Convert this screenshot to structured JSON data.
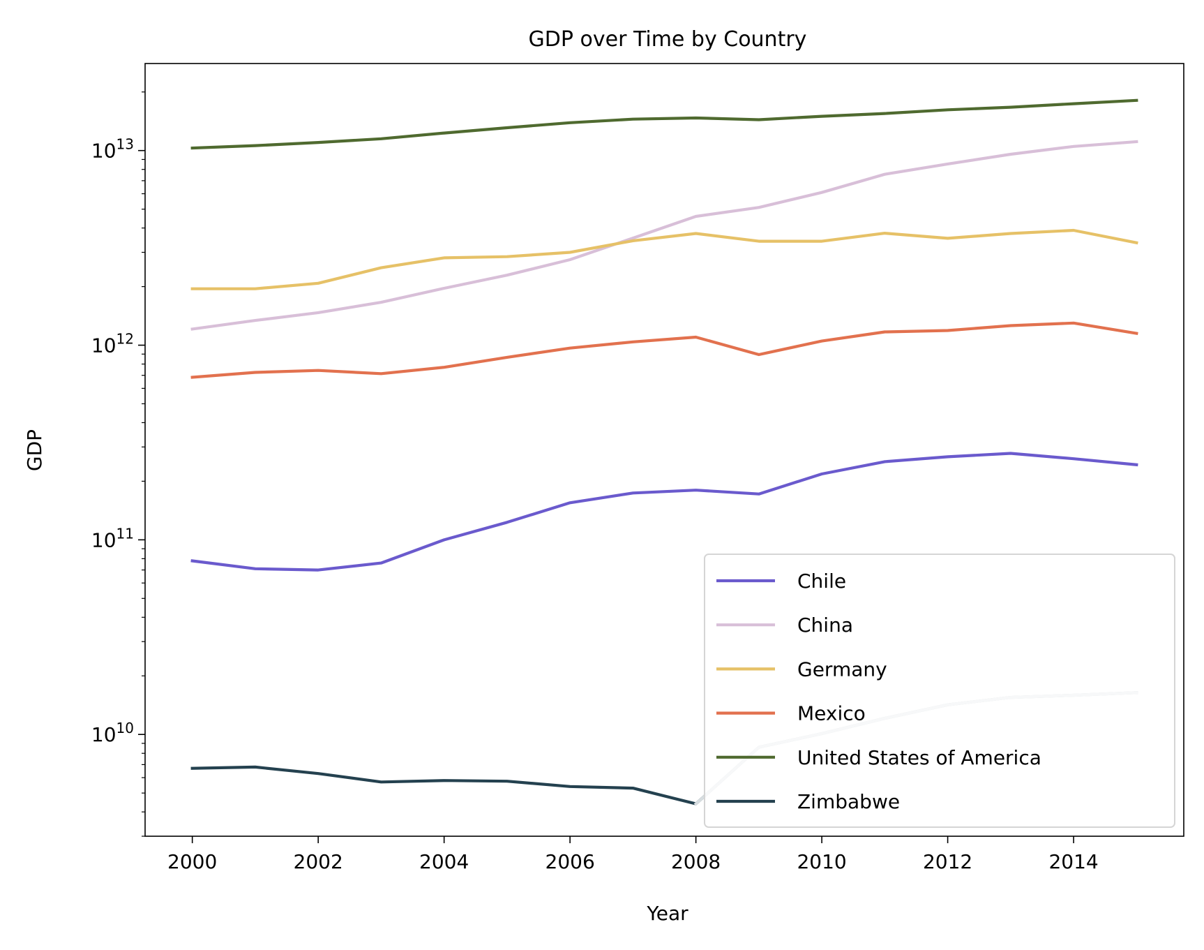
{
  "chart_data": {
    "type": "line",
    "title": "GDP over Time by Country",
    "xlabel": "Year",
    "ylabel": "GDP",
    "xlim": [
      1999.25,
      2015.75
    ],
    "ylim": [
      3000000000.0,
      28000000000000.0
    ],
    "yscale": "log",
    "x_ticks": [
      2000,
      2002,
      2004,
      2006,
      2008,
      2010,
      2012,
      2014
    ],
    "y_ticks": [
      {
        "value": 10000000000.0,
        "base": "10",
        "exp": "10"
      },
      {
        "value": 100000000000.0,
        "base": "10",
        "exp": "11"
      },
      {
        "value": 1000000000000.0,
        "base": "10",
        "exp": "12"
      },
      {
        "value": 10000000000000.0,
        "base": "10",
        "exp": "13"
      }
    ],
    "grid": false,
    "legend_position": "lower-right",
    "x": [
      2000,
      2001,
      2002,
      2003,
      2004,
      2005,
      2006,
      2007,
      2008,
      2009,
      2010,
      2011,
      2012,
      2013,
      2014,
      2015
    ],
    "series": [
      {
        "name": "Chile",
        "color": "#6a5acd",
        "values": [
          78000000000.0,
          71000000000.0,
          70000000000.0,
          76000000000.0,
          100000000000.0,
          123000000000.0,
          155000000000.0,
          174000000000.0,
          180000000000.0,
          172000000000.0,
          218000000000.0,
          252000000000.0,
          267000000000.0,
          278000000000.0,
          261000000000.0,
          243000000000.0
        ]
      },
      {
        "name": "China",
        "color": "#d8bfd8",
        "values": [
          1210000000000.0,
          1340000000000.0,
          1470000000000.0,
          1660000000000.0,
          1960000000000.0,
          2290000000000.0,
          2750000000000.0,
          3550000000000.0,
          4590000000000.0,
          5100000000000.0,
          6090000000000.0,
          7550000000000.0,
          8530000000000.0,
          9570000000000.0,
          10500000000000.0,
          11100000000000.0
        ]
      },
      {
        "name": "Germany",
        "color": "#e6c167",
        "values": [
          1950000000000.0,
          1950000000000.0,
          2080000000000.0,
          2500000000000.0,
          2810000000000.0,
          2850000000000.0,
          3000000000000.0,
          3440000000000.0,
          3750000000000.0,
          3420000000000.0,
          3420000000000.0,
          3760000000000.0,
          3540000000000.0,
          3750000000000.0,
          3890000000000.0,
          3360000000000.0
        ]
      },
      {
        "name": "Mexico",
        "color": "#e2714e",
        "values": [
          684000000000.0,
          725000000000.0,
          742000000000.0,
          714000000000.0,
          770000000000.0,
          866000000000.0,
          966000000000.0,
          1040000000000.0,
          1100000000000.0,
          895000000000.0,
          1050000000000.0,
          1170000000000.0,
          1190000000000.0,
          1260000000000.0,
          1300000000000.0,
          1150000000000.0
        ]
      },
      {
        "name": "United States of America",
        "color": "#4f6a2f",
        "values": [
          10300000000000.0,
          10600000000000.0,
          11000000000000.0,
          11500000000000.0,
          12300000000000.0,
          13100000000000.0,
          13900000000000.0,
          14500000000000.0,
          14700000000000.0,
          14400000000000.0,
          15000000000000.0,
          15500000000000.0,
          16200000000000.0,
          16700000000000.0,
          17400000000000.0,
          18100000000000.0
        ]
      },
      {
        "name": "Zimbabwe",
        "color": "#24414f",
        "values": [
          6700000000.0,
          6800000000.0,
          6300000000.0,
          5700000000.0,
          5800000000.0,
          5750000000.0,
          5400000000.0,
          5300000000.0,
          4400000000.0,
          8600000000.0,
          10100000000.0,
          12100000000.0,
          14200000000.0,
          15500000000.0,
          15900000000.0,
          16400000000.0
        ]
      }
    ],
    "line_overlays": [
      {
        "from_x": 2008,
        "color": "#d7dde0",
        "series": "Zimbabwe"
      }
    ]
  }
}
